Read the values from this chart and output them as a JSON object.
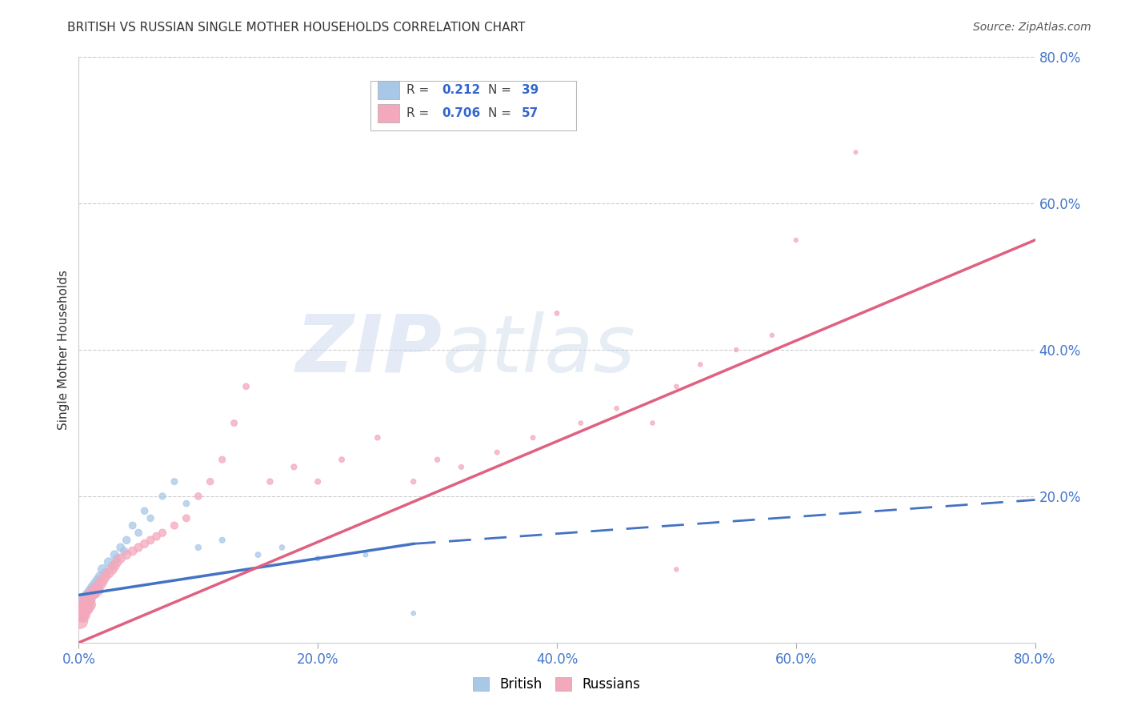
{
  "title": "BRITISH VS RUSSIAN SINGLE MOTHER HOUSEHOLDS CORRELATION CHART",
  "source": "Source: ZipAtlas.com",
  "ylabel": "Single Mother Households",
  "xlim": [
    0.0,
    0.8
  ],
  "ylim": [
    0.0,
    0.8
  ],
  "xticks": [
    0.0,
    0.2,
    0.4,
    0.6,
    0.8
  ],
  "yticks_right": [
    0.2,
    0.4,
    0.6,
    0.8
  ],
  "xticklabels": [
    "0.0%",
    "20.0%",
    "40.0%",
    "60.0%",
    "80.0%"
  ],
  "yticklabels_right": [
    "20.0%",
    "40.0%",
    "60.0%",
    "80.0%"
  ],
  "british_R": 0.212,
  "british_N": 39,
  "russian_R": 0.706,
  "russian_N": 57,
  "british_color": "#A8C8E8",
  "russian_color": "#F4A8BC",
  "british_line_color": "#4472C4",
  "russian_line_color": "#E06080",
  "watermark_zip": "ZIP",
  "watermark_atlas": "atlas",
  "british_scatter_x": [
    0.001,
    0.002,
    0.003,
    0.004,
    0.005,
    0.006,
    0.007,
    0.008,
    0.009,
    0.01,
    0.012,
    0.013,
    0.014,
    0.015,
    0.016,
    0.018,
    0.02,
    0.022,
    0.025,
    0.028,
    0.03,
    0.032,
    0.035,
    0.038,
    0.04,
    0.045,
    0.05,
    0.055,
    0.06,
    0.07,
    0.08,
    0.09,
    0.1,
    0.12,
    0.15,
    0.17,
    0.2,
    0.24,
    0.28
  ],
  "british_scatter_y": [
    0.04,
    0.05,
    0.045,
    0.055,
    0.048,
    0.06,
    0.052,
    0.065,
    0.058,
    0.07,
    0.075,
    0.068,
    0.08,
    0.072,
    0.085,
    0.09,
    0.1,
    0.095,
    0.11,
    0.105,
    0.12,
    0.115,
    0.13,
    0.125,
    0.14,
    0.16,
    0.15,
    0.18,
    0.17,
    0.2,
    0.22,
    0.19,
    0.13,
    0.14,
    0.12,
    0.13,
    0.115,
    0.12,
    0.04
  ],
  "british_sizes": [
    200,
    180,
    160,
    150,
    140,
    130,
    120,
    110,
    100,
    100,
    95,
    90,
    85,
    80,
    80,
    75,
    70,
    65,
    60,
    55,
    55,
    50,
    50,
    45,
    45,
    40,
    40,
    38,
    36,
    34,
    32,
    30,
    28,
    26,
    24,
    22,
    20,
    18,
    16
  ],
  "russian_scatter_x": [
    0.001,
    0.002,
    0.003,
    0.004,
    0.005,
    0.006,
    0.007,
    0.008,
    0.009,
    0.01,
    0.012,
    0.013,
    0.015,
    0.016,
    0.018,
    0.02,
    0.022,
    0.025,
    0.028,
    0.03,
    0.032,
    0.035,
    0.04,
    0.045,
    0.05,
    0.055,
    0.06,
    0.065,
    0.07,
    0.08,
    0.09,
    0.1,
    0.11,
    0.12,
    0.13,
    0.14,
    0.16,
    0.18,
    0.2,
    0.22,
    0.25,
    0.28,
    0.3,
    0.32,
    0.35,
    0.38,
    0.4,
    0.42,
    0.45,
    0.48,
    0.5,
    0.5,
    0.52,
    0.55,
    0.58,
    0.6,
    0.65
  ],
  "russian_scatter_y": [
    0.03,
    0.04,
    0.038,
    0.05,
    0.045,
    0.055,
    0.048,
    0.06,
    0.052,
    0.065,
    0.07,
    0.068,
    0.075,
    0.072,
    0.08,
    0.085,
    0.09,
    0.095,
    0.1,
    0.105,
    0.11,
    0.115,
    0.12,
    0.125,
    0.13,
    0.135,
    0.14,
    0.145,
    0.15,
    0.16,
    0.17,
    0.2,
    0.22,
    0.25,
    0.3,
    0.35,
    0.22,
    0.24,
    0.22,
    0.25,
    0.28,
    0.22,
    0.25,
    0.24,
    0.26,
    0.28,
    0.45,
    0.3,
    0.32,
    0.3,
    0.35,
    0.1,
    0.38,
    0.4,
    0.42,
    0.55,
    0.67
  ],
  "russian_sizes": [
    200,
    190,
    180,
    170,
    160,
    150,
    140,
    130,
    120,
    115,
    110,
    105,
    100,
    95,
    90,
    85,
    80,
    78,
    75,
    72,
    68,
    65,
    62,
    58,
    55,
    52,
    50,
    48,
    45,
    42,
    40,
    38,
    36,
    34,
    32,
    30,
    28,
    26,
    25,
    24,
    22,
    21,
    20,
    19,
    18,
    17,
    17,
    16,
    16,
    15,
    15,
    15,
    15,
    14,
    14,
    14,
    13
  ],
  "brit_line_x_start": 0.0,
  "brit_line_x_solid_end": 0.28,
  "brit_line_x_dash_end": 0.8,
  "brit_line_y_start": 0.065,
  "brit_line_y_solid_end": 0.135,
  "brit_line_y_dash_end": 0.195,
  "russ_line_x_start": 0.0,
  "russ_line_x_end": 0.8,
  "russ_line_y_start": 0.0,
  "russ_line_y_end": 0.55
}
